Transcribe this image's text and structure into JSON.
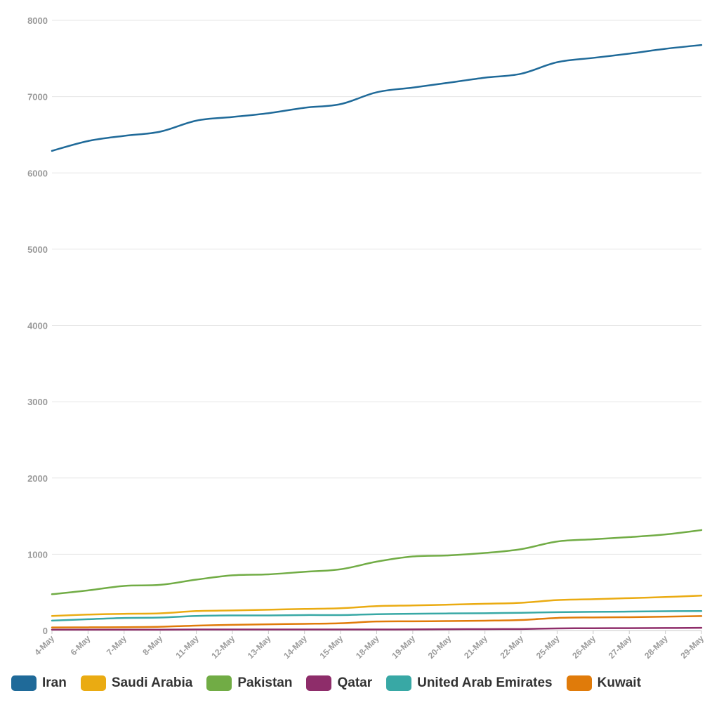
{
  "chart_data": {
    "type": "line",
    "title": "",
    "xlabel": "",
    "ylabel": "",
    "ylim": [
      0,
      8000
    ],
    "y_ticks": [
      "0",
      "1000",
      "2000",
      "3000",
      "4000",
      "5000",
      "6000",
      "7000",
      "8000"
    ],
    "grid": true,
    "legend_position": "bottom",
    "categories": [
      "4-May",
      "6-May",
      "7-May",
      "8-May",
      "11-May",
      "12-May",
      "13-May",
      "14-May",
      "15-May",
      "18-May",
      "19-May",
      "20-May",
      "21-May",
      "22-May",
      "25-May",
      "26-May",
      "27-May",
      "28-May",
      "29-May"
    ],
    "series": [
      {
        "name": "Iran",
        "color": "#1f6a99",
        "values": [
          6289,
          6418,
          6486,
          6541,
          6685,
          6733,
          6783,
          6854,
          6902,
          7057,
          7119,
          7183,
          7249,
          7300,
          7451,
          7508,
          7564,
          7627,
          7677
        ]
      },
      {
        "name": "Saudi Arabia",
        "color": "#eaab12",
        "values": [
          191,
          209,
          219,
          225,
          255,
          264,
          273,
          283,
          292,
          320,
          329,
          339,
          351,
          364,
          399,
          411,
          425,
          439,
          458
        ]
      },
      {
        "name": "Pakistan",
        "color": "#71ac45",
        "values": [
          476,
          526,
          585,
          599,
          667,
          724,
          737,
          770,
          803,
          903,
          971,
          985,
          1017,
          1067,
          1167,
          1197,
          1225,
          1260,
          1317
        ]
      },
      {
        "name": "Qatar",
        "color": "#8e2d6a",
        "values": [
          12,
          12,
          12,
          12,
          14,
          14,
          14,
          14,
          14,
          14,
          15,
          17,
          19,
          20,
          28,
          30,
          31,
          33,
          36
        ]
      },
      {
        "name": "United Arab Emirates",
        "color": "#38a8a5",
        "values": [
          130,
          148,
          165,
          170,
          191,
          198,
          198,
          203,
          203,
          214,
          220,
          224,
          227,
          233,
          241,
          245,
          248,
          253,
          255
        ]
      },
      {
        "name": "Kuwait",
        "color": "#e07b0a",
        "values": [
          40,
          42,
          44,
          49,
          65,
          75,
          82,
          88,
          96,
          118,
          121,
          124,
          129,
          138,
          165,
          172,
          175,
          182,
          190
        ]
      }
    ]
  }
}
